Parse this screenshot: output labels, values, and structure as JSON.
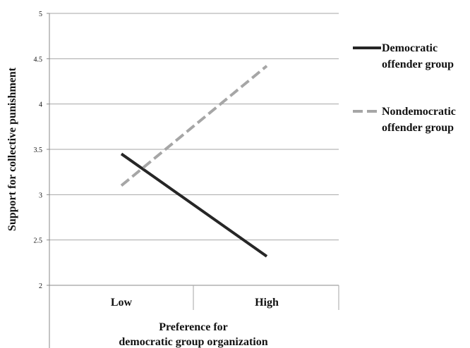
{
  "chart_data": {
    "type": "line",
    "categories": [
      "Low",
      "High"
    ],
    "series": [
      {
        "name": "Democratic offender group",
        "name_lines": [
          "Democratic",
          "offender group"
        ],
        "values": [
          3.45,
          2.32
        ],
        "color": "#262626",
        "dash": "solid"
      },
      {
        "name": "Nondemocratic offender group",
        "name_lines": [
          "Nondemocratic",
          "offender group"
        ],
        "values": [
          3.1,
          4.42
        ],
        "color": "#a6a6a6",
        "dash": "dashed"
      }
    ],
    "ylabel": "Support for collective punishment",
    "xlabel_lines": [
      "Preference for",
      "democratic group organization"
    ],
    "ylim": [
      2,
      5
    ],
    "yticks": [
      "2",
      "2.5",
      "3",
      "3.5",
      "4",
      "4.5",
      "5"
    ],
    "grid": true,
    "legend_position": "right"
  }
}
